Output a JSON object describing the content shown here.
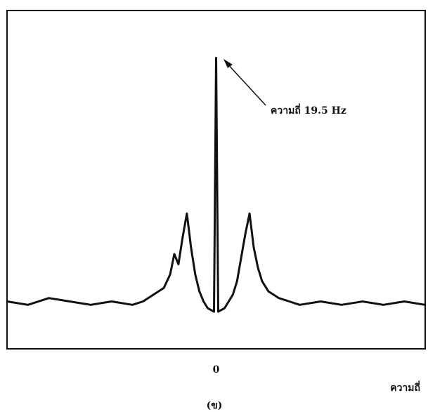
{
  "chart_data": {
    "type": "line",
    "x": [
      -100,
      -90,
      -80,
      -70,
      -60,
      -50,
      -40,
      -35,
      -30,
      -25,
      -22,
      -20,
      -18,
      -16,
      -14,
      -12,
      -10,
      -8,
      -6,
      -4,
      -1,
      0,
      1,
      4,
      6,
      8,
      10,
      12,
      14,
      16,
      18,
      20,
      22,
      25,
      30,
      35,
      40,
      50,
      60,
      70,
      80,
      90,
      100
    ],
    "values": [
      14,
      13,
      15,
      14,
      13,
      14,
      13,
      14,
      16,
      18,
      22,
      28,
      25,
      33,
      40,
      30,
      22,
      17,
      14,
      12,
      11,
      86,
      11,
      12,
      14,
      16,
      20,
      27,
      34,
      40,
      30,
      24,
      20,
      17,
      15,
      14,
      13,
      14,
      13,
      14,
      13,
      14,
      13
    ],
    "color": "#111111",
    "xlim": [
      -100,
      100
    ],
    "xticks": [
      0
    ],
    "ylim": [
      0,
      100
    ],
    "annotation": "ความถี่ 19.5 Hz",
    "xlabel": "ความถี่",
    "caption": "(ข)"
  }
}
